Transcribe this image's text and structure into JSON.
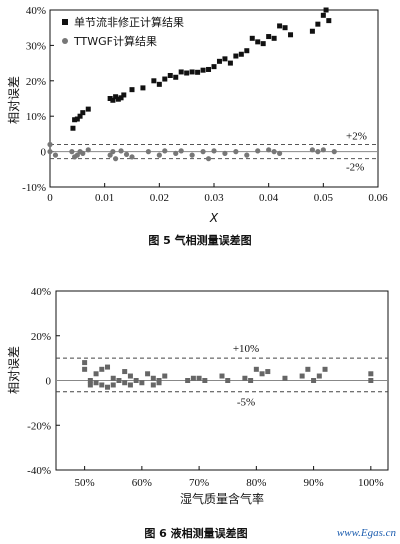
{
  "chart_data": [
    {
      "type": "scatter",
      "caption": "图 5    气相测量误差图",
      "xlabel": "X",
      "ylabel": "相对误差",
      "xlim": [
        0,
        0.06
      ],
      "ylim": [
        -0.1,
        0.4
      ],
      "x_ticks": [
        "0",
        "0.01",
        "0.02",
        "0.03",
        "0.04",
        "0.05",
        "0.06"
      ],
      "y_ticks": [
        "40%",
        "30%",
        "20%",
        "10%",
        "0",
        "-10%"
      ],
      "legend_position": "top-left",
      "reference_lines": [
        {
          "value": 0.02,
          "label": "+2%",
          "style": "dashed"
        },
        {
          "value": 0.0,
          "label": "",
          "style": "solid"
        },
        {
          "value": -0.02,
          "label": "-2%",
          "style": "dashed"
        }
      ],
      "series": [
        {
          "name": "单节流非修正计算结果",
          "marker": "square",
          "color": "#111111",
          "points": [
            [
              0.0042,
              0.066
            ],
            [
              0.0045,
              0.09
            ],
            [
              0.005,
              0.092
            ],
            [
              0.0055,
              0.1
            ],
            [
              0.006,
              0.11
            ],
            [
              0.007,
              0.12
            ],
            [
              0.011,
              0.15
            ],
            [
              0.0115,
              0.145
            ],
            [
              0.012,
              0.155
            ],
            [
              0.0125,
              0.148
            ],
            [
              0.013,
              0.152
            ],
            [
              0.0135,
              0.16
            ],
            [
              0.015,
              0.175
            ],
            [
              0.017,
              0.18
            ],
            [
              0.019,
              0.2
            ],
            [
              0.02,
              0.19
            ],
            [
              0.021,
              0.205
            ],
            [
              0.022,
              0.215
            ],
            [
              0.023,
              0.21
            ],
            [
              0.024,
              0.225
            ],
            [
              0.025,
              0.222
            ],
            [
              0.026,
              0.225
            ],
            [
              0.027,
              0.224
            ],
            [
              0.028,
              0.23
            ],
            [
              0.029,
              0.232
            ],
            [
              0.03,
              0.24
            ],
            [
              0.031,
              0.255
            ],
            [
              0.032,
              0.262
            ],
            [
              0.033,
              0.25
            ],
            [
              0.034,
              0.27
            ],
            [
              0.035,
              0.275
            ],
            [
              0.036,
              0.285
            ],
            [
              0.037,
              0.32
            ],
            [
              0.038,
              0.31
            ],
            [
              0.039,
              0.305
            ],
            [
              0.04,
              0.325
            ],
            [
              0.041,
              0.32
            ],
            [
              0.042,
              0.355
            ],
            [
              0.043,
              0.35
            ],
            [
              0.044,
              0.33
            ],
            [
              0.048,
              0.34
            ],
            [
              0.049,
              0.36
            ],
            [
              0.05,
              0.385
            ],
            [
              0.0505,
              0.4
            ],
            [
              0.051,
              0.37
            ]
          ]
        },
        {
          "name": "TTWGF计算结果",
          "marker": "circle",
          "color": "#777777",
          "points": [
            [
              0.0,
              0.02
            ],
            [
              0.0,
              0.0
            ],
            [
              0.001,
              -0.01
            ],
            [
              0.004,
              0.0
            ],
            [
              0.0045,
              -0.015
            ],
            [
              0.005,
              -0.01
            ],
            [
              0.0055,
              0.0
            ],
            [
              0.006,
              -0.005
            ],
            [
              0.007,
              0.005
            ],
            [
              0.011,
              -0.01
            ],
            [
              0.0115,
              0.0
            ],
            [
              0.012,
              -0.02
            ],
            [
              0.013,
              0.002
            ],
            [
              0.014,
              -0.008
            ],
            [
              0.015,
              -0.015
            ],
            [
              0.018,
              0.0
            ],
            [
              0.02,
              -0.01
            ],
            [
              0.021,
              0.002
            ],
            [
              0.023,
              -0.005
            ],
            [
              0.024,
              0.002
            ],
            [
              0.026,
              -0.01
            ],
            [
              0.028,
              0.0
            ],
            [
              0.029,
              -0.02
            ],
            [
              0.03,
              0.002
            ],
            [
              0.032,
              -0.005
            ],
            [
              0.034,
              0.0
            ],
            [
              0.036,
              -0.01
            ],
            [
              0.038,
              0.002
            ],
            [
              0.04,
              0.005
            ],
            [
              0.041,
              0.0
            ],
            [
              0.042,
              -0.005
            ],
            [
              0.048,
              0.005
            ],
            [
              0.049,
              0.0
            ],
            [
              0.05,
              0.005
            ],
            [
              0.052,
              0.0
            ]
          ]
        }
      ]
    },
    {
      "type": "scatter",
      "caption": "图 6    液相测量误差图",
      "xlabel": "湿气质量含气率",
      "ylabel": "相对误差",
      "xlim": [
        0.45,
        1.03
      ],
      "ylim": [
        -0.4,
        0.4
      ],
      "x_ticks": [
        "50%",
        "60%",
        "70%",
        "80%",
        "90%",
        "100%"
      ],
      "x_tick_values": [
        0.5,
        0.6,
        0.7,
        0.8,
        0.9,
        1.0
      ],
      "y_ticks": [
        "40%",
        "20%",
        "0",
        "-20%",
        "-40%"
      ],
      "reference_lines": [
        {
          "value": 0.1,
          "label": "+10%",
          "style": "dashed"
        },
        {
          "value": 0.0,
          "label": "",
          "style": "solid"
        },
        {
          "value": -0.05,
          "label": "-5%",
          "style": "dashed"
        }
      ],
      "series": [
        {
          "marker": "square",
          "color": "#666666",
          "points": [
            [
              0.5,
              0.08
            ],
            [
              0.5,
              0.05
            ],
            [
              0.51,
              0.0
            ],
            [
              0.51,
              -0.02
            ],
            [
              0.52,
              0.03
            ],
            [
              0.52,
              -0.01
            ],
            [
              0.53,
              0.05
            ],
            [
              0.53,
              -0.02
            ],
            [
              0.54,
              0.06
            ],
            [
              0.54,
              -0.03
            ],
            [
              0.55,
              0.01
            ],
            [
              0.55,
              -0.02
            ],
            [
              0.56,
              0.0
            ],
            [
              0.57,
              0.04
            ],
            [
              0.57,
              -0.01
            ],
            [
              0.58,
              0.02
            ],
            [
              0.58,
              -0.02
            ],
            [
              0.59,
              0.0
            ],
            [
              0.6,
              -0.01
            ],
            [
              0.61,
              0.03
            ],
            [
              0.62,
              0.01
            ],
            [
              0.62,
              -0.02
            ],
            [
              0.63,
              0.0
            ],
            [
              0.63,
              -0.01
            ],
            [
              0.64,
              0.02
            ],
            [
              0.68,
              0.0
            ],
            [
              0.69,
              0.01
            ],
            [
              0.7,
              0.01
            ],
            [
              0.71,
              0.0
            ],
            [
              0.74,
              0.02
            ],
            [
              0.75,
              0.0
            ],
            [
              0.78,
              0.01
            ],
            [
              0.79,
              0.0
            ],
            [
              0.8,
              0.05
            ],
            [
              0.81,
              0.03
            ],
            [
              0.82,
              0.04
            ],
            [
              0.85,
              0.01
            ],
            [
              0.88,
              0.02
            ],
            [
              0.89,
              0.05
            ],
            [
              0.9,
              0.0
            ],
            [
              0.91,
              0.02
            ],
            [
              0.92,
              0.05
            ],
            [
              1.0,
              0.03
            ],
            [
              1.0,
              0.0
            ]
          ]
        }
      ]
    }
  ],
  "watermark": "www.Egas.cn"
}
